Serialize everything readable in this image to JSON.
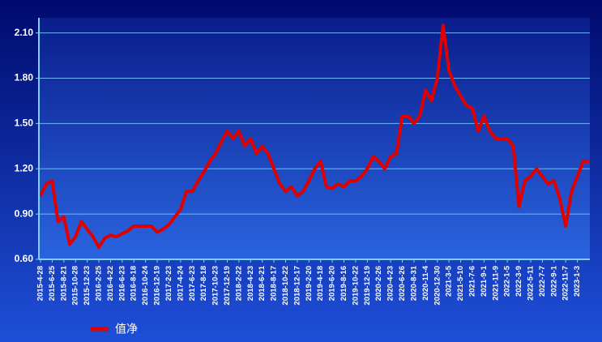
{
  "chart_data": {
    "type": "line",
    "categories": [
      "2015-4-28",
      null,
      "2015-6-25",
      null,
      "2015-8-21",
      null,
      "2015-10-28",
      null,
      "2015-12-23",
      null,
      "2016-2-25",
      null,
      "2016-4-22",
      null,
      "2016-6-23",
      null,
      "2016-8-18",
      null,
      "2016-10-24",
      null,
      "2016-12-19",
      null,
      "2017-2-23",
      null,
      "2017-4-24",
      null,
      "2017-6-23",
      null,
      "2017-8-18",
      null,
      "2017-10-23",
      null,
      "2017-12-19",
      null,
      "2018-2-22",
      null,
      "2018-4-23",
      null,
      "2018-6-21",
      null,
      "2018-8-17",
      null,
      "2018-10-22",
      null,
      "2018-12-17",
      null,
      "2019-2-20",
      null,
      "2019-4-18",
      null,
      "2019-6-20",
      null,
      "2019-8-16",
      null,
      "2019-10-22",
      null,
      "2019-12-19",
      null,
      "2020-2-26",
      null,
      "2020-4-23",
      null,
      "2020-6-26",
      null,
      "2020-8-31",
      null,
      "2020-11-4",
      null,
      "2020-12-30",
      null,
      "2021-3-5",
      null,
      "2021-5-10",
      null,
      "2021-7-6",
      null,
      "2021-9-1",
      null,
      "2021-11-9",
      null,
      "2022-1-5",
      null,
      "2022-3-9",
      null,
      "2022-5-11",
      null,
      "2022-7-7",
      null,
      "2022-9-1",
      null,
      "2022-11-7",
      null,
      "2023-1-3",
      null,
      null
    ],
    "series": [
      {
        "name": "值净",
        "color": "#e00000",
        "values": [
          1.02,
          1.1,
          1.12,
          0.85,
          0.88,
          0.7,
          0.75,
          0.85,
          0.8,
          0.75,
          0.68,
          0.74,
          0.76,
          0.75,
          0.77,
          0.79,
          0.82,
          0.82,
          0.82,
          0.82,
          0.78,
          0.8,
          0.83,
          0.88,
          0.93,
          1.05,
          1.05,
          1.12,
          1.18,
          1.25,
          1.3,
          1.38,
          1.45,
          1.4,
          1.45,
          1.35,
          1.4,
          1.3,
          1.35,
          1.3,
          1.2,
          1.1,
          1.05,
          1.08,
          1.02,
          1.05,
          1.12,
          1.2,
          1.25,
          1.08,
          1.07,
          1.1,
          1.08,
          1.12,
          1.12,
          1.15,
          1.2,
          1.28,
          1.25,
          1.2,
          1.28,
          1.3,
          1.55,
          1.55,
          1.5,
          1.55,
          1.72,
          1.65,
          1.8,
          2.15,
          1.85,
          1.75,
          1.68,
          1.62,
          1.6,
          1.45,
          1.55,
          1.45,
          1.4,
          1.4,
          1.4,
          1.35,
          0.95,
          1.12,
          1.15,
          1.2,
          1.15,
          1.1,
          1.12,
          1.0,
          0.82,
          1.05,
          1.15,
          1.25,
          1.25
        ]
      }
    ],
    "ylim": [
      0.6,
      2.2
    ],
    "yticks": [
      {
        "value": 0.6,
        "label": "0.60"
      },
      {
        "value": 0.9,
        "label": "0.90"
      },
      {
        "value": 1.2,
        "label": "1.20"
      },
      {
        "value": 1.5,
        "label": "1.50"
      },
      {
        "value": 1.8,
        "label": "1.80"
      },
      {
        "value": 2.1,
        "label": "2.10"
      }
    ],
    "grid": true
  }
}
